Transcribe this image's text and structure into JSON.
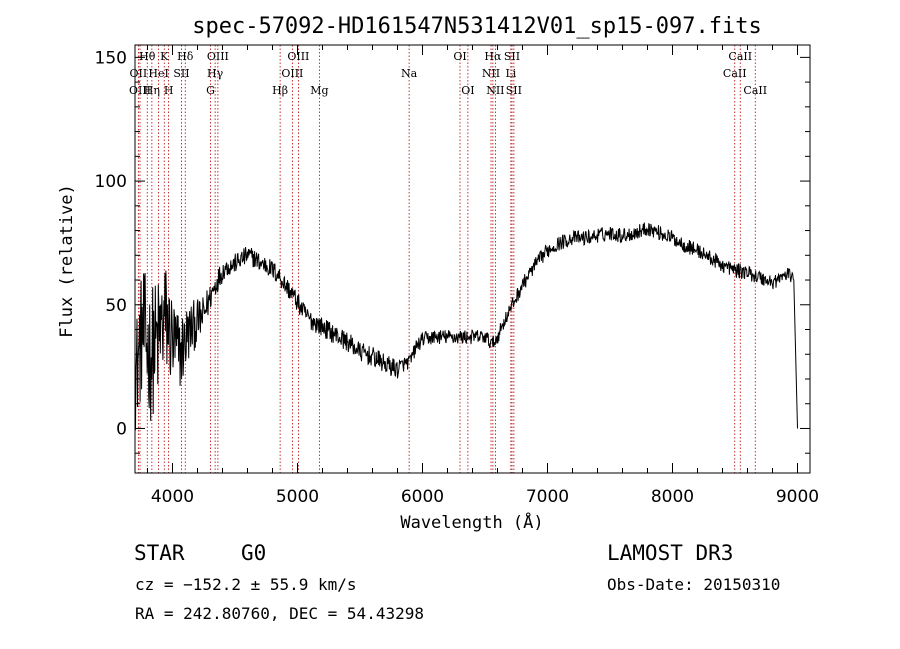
{
  "chart_data": {
    "type": "line",
    "title": "spec-57092-HD161547N531412V01_sp15-097.fits",
    "xlabel": "Wavelength (Å)",
    "ylabel": "Flux (relative)",
    "xlim": [
      3700,
      9100
    ],
    "ylim": [
      -18,
      155
    ],
    "xticks": [
      4000,
      5000,
      6000,
      7000,
      8000,
      9000
    ],
    "yticks": [
      0,
      50,
      100,
      150
    ],
    "spectrum_anchors": {
      "x": [
        3700,
        3760,
        3820,
        3880,
        3940,
        4000,
        4060,
        4120,
        4180,
        4240,
        4300,
        4360,
        4420,
        4480,
        4540,
        4600,
        4650,
        4700,
        4750,
        4800,
        4850,
        4900,
        4950,
        5000,
        5050,
        5100,
        5200,
        5300,
        5400,
        5500,
        5600,
        5700,
        5750,
        5800,
        5850,
        5900,
        5950,
        6000,
        6100,
        6200,
        6300,
        6400,
        6500,
        6560,
        6600,
        6650,
        6700,
        6800,
        6900,
        7000,
        7100,
        7200,
        7300,
        7400,
        7500,
        7600,
        7700,
        7800,
        7900,
        8000,
        8100,
        8200,
        8300,
        8400,
        8500,
        8600,
        8700,
        8800,
        8900,
        8970,
        9000
      ],
      "y": [
        20,
        40,
        30,
        35,
        45,
        35,
        30,
        38,
        42,
        45,
        53,
        60,
        65,
        66,
        68,
        70,
        69,
        67,
        66,
        64,
        62,
        58,
        55,
        51,
        47,
        44,
        41,
        38,
        35,
        31,
        29,
        26,
        25,
        24,
        26,
        27,
        33,
        36,
        37,
        37,
        37,
        37,
        37,
        34,
        37,
        43,
        48,
        58,
        66,
        72,
        75,
        77,
        77,
        78,
        79,
        78,
        79,
        81,
        79,
        77,
        74,
        72,
        69,
        66,
        64,
        63,
        61,
        59,
        62,
        62,
        0
      ]
    },
    "noise_amplitude": [
      22,
      26,
      28,
      26,
      24,
      20,
      16,
      13,
      10,
      8,
      6,
      5,
      4,
      4,
      4,
      4,
      4,
      4,
      4,
      4,
      4,
      4,
      4,
      4,
      4,
      4,
      4,
      4,
      4,
      4,
      4,
      4,
      4,
      4,
      3,
      3,
      3,
      3,
      3,
      3,
      3,
      3,
      3,
      3,
      3,
      3,
      3,
      3,
      3,
      3,
      3,
      3,
      3,
      3,
      3,
      3,
      3,
      3,
      3,
      3,
      3,
      3,
      3,
      3,
      3,
      3,
      3,
      3,
      3,
      3,
      3
    ],
    "spectral_lines": [
      {
        "label": "Hθ",
        "wavelength": 3798,
        "row": 1
      },
      {
        "label": "OII",
        "wavelength": 3727,
        "row": 2
      },
      {
        "label": "Hη",
        "wavelength": 3835,
        "row": 3
      },
      {
        "label": "OIII",
        "wavelength": 3740,
        "row": 3
      },
      {
        "label": "HeI",
        "wavelength": 3889,
        "row": 2
      },
      {
        "label": "K",
        "wavelength": 3934,
        "row": 1
      },
      {
        "label": "H",
        "wavelength": 3969,
        "row": 3
      },
      {
        "label": "Hδ",
        "wavelength": 4102,
        "row": 1
      },
      {
        "label": "SII",
        "wavelength": 4072,
        "row": 2
      },
      {
        "label": "OIII",
        "wavelength": 4363,
        "row": 1
      },
      {
        "label": "Hγ",
        "wavelength": 4341,
        "row": 2
      },
      {
        "label": "G",
        "wavelength": 4304,
        "row": 3
      },
      {
        "label": "Hβ",
        "wavelength": 4861,
        "row": 3
      },
      {
        "label": "OIII",
        "wavelength": 5007,
        "row": 1
      },
      {
        "label": "OIII",
        "wavelength": 4959,
        "row": 2
      },
      {
        "label": "Mg",
        "wavelength": 5175,
        "row": 3
      },
      {
        "label": "Na",
        "wavelength": 5893,
        "row": 2
      },
      {
        "label": "OI",
        "wavelength": 6300,
        "row": 1
      },
      {
        "label": "OI",
        "wavelength": 6363,
        "row": 3
      },
      {
        "label": "Hα",
        "wavelength": 6563,
        "row": 1
      },
      {
        "label": "NII",
        "wavelength": 6548,
        "row": 2
      },
      {
        "label": "NII",
        "wavelength": 6583,
        "row": 3
      },
      {
        "label": "SII",
        "wavelength": 6716,
        "row": 1
      },
      {
        "label": "Li",
        "wavelength": 6707,
        "row": 2
      },
      {
        "label": "SII",
        "wavelength": 6731,
        "row": 3
      },
      {
        "label": "CaII",
        "wavelength": 8542,
        "row": 1
      },
      {
        "label": "CaII",
        "wavelength": 8498,
        "row": 2
      },
      {
        "label": "CaII",
        "wavelength": 8662,
        "row": 3
      }
    ]
  },
  "info": {
    "class": "STAR",
    "subclass": "G0",
    "survey": "LAMOST DR3",
    "cz": "cz = −152.2 ± 55.9 km/s",
    "obs_date": "Obs-Date: 20150310",
    "coords": "RA = 242.80760, DEC =  54.43298"
  },
  "colors": {
    "spectrum": "#000000",
    "line_marker": "#b40000"
  }
}
